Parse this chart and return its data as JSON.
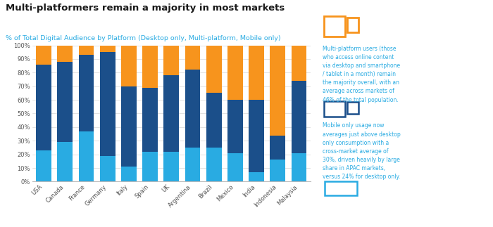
{
  "categories": [
    "USA",
    "Canada",
    "France",
    "Germany",
    "Italy",
    "Spain",
    "UK",
    "Argentina",
    "Brazil",
    "Mexico",
    "India",
    "Indonesia",
    "Malaysia"
  ],
  "desktop_only": [
    23,
    29,
    37,
    19,
    11,
    22,
    22,
    25,
    25,
    21,
    7,
    16,
    21
  ],
  "multi_platform": [
    63,
    59,
    56,
    76,
    59,
    47,
    56,
    57,
    40,
    39,
    53,
    18,
    53
  ],
  "mobile_only": [
    14,
    12,
    7,
    5,
    30,
    31,
    22,
    18,
    35,
    40,
    40,
    66,
    26
  ],
  "color_desktop": "#29ABE2",
  "color_multi": "#1B4F8A",
  "color_mobile": "#F7941D",
  "title": "Multi-platformers remain a majority in most markets",
  "subtitle": "% of Total Digital Audience by Platform (Desktop only, Multi-platform, Mobile only)",
  "title_color": "#1a1a1a",
  "subtitle_color": "#29ABE2",
  "annotation1": "Multi-platform users (those\nwho access online content\nvia desktop and smartphone\n/ tablet in a month) remain\nthe majority overall, with an\naverage across markets of\n46% of the total population.",
  "annotation2": "Mobile only usage now\naverages just above desktop\nonly consumption with a\ncross-market average of\n30%, driven heavily by large\nshare in APAC markets,\nversus 24% for desktop only.",
  "annotation_color": "#29ABE2",
  "bg_color": "#FFFFFF",
  "right_panel_bg": "#EAF6FD",
  "ylim": [
    0,
    100
  ],
  "ytick_labels": [
    "0%",
    "10%",
    "20%",
    "30%",
    "40%",
    "50%",
    "60%",
    "70%",
    "80%",
    "90%",
    "100%"
  ]
}
